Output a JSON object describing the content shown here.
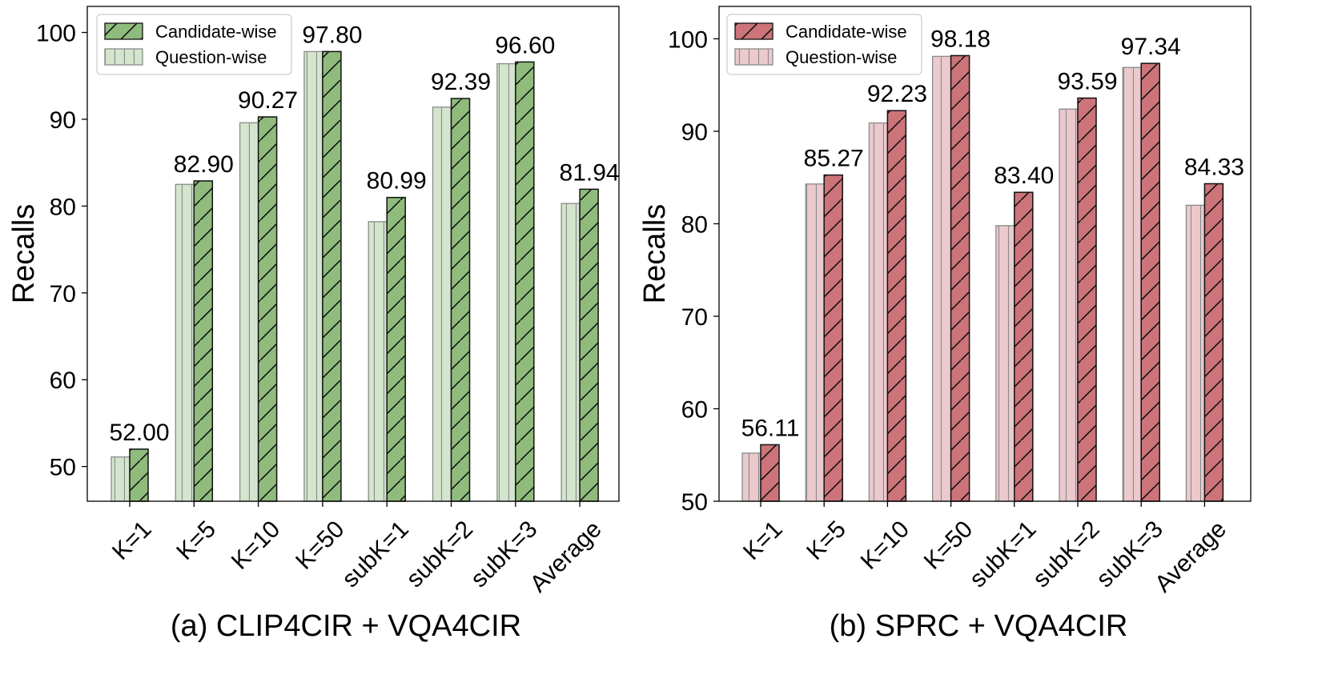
{
  "chart_data": [
    {
      "type": "bar",
      "caption": "(a) CLIP4CIR + VQA4CIR",
      "ylabel": "Recalls",
      "xlabel": "",
      "ylim": [
        46,
        103
      ],
      "yticks": [
        "50",
        "60",
        "70",
        "80",
        "90",
        "100"
      ],
      "categories": [
        "K=1",
        "K=5",
        "K=10",
        "K=50",
        "subK=1",
        "subK=2",
        "subK=3",
        "Average"
      ],
      "legend_position": "top-left",
      "series": [
        {
          "name": "Question-wise",
          "values": [
            51.1,
            82.5,
            89.6,
            97.8,
            78.2,
            91.4,
            96.4,
            80.3
          ],
          "color": "#d3e5cd",
          "hatch": "vertical"
        },
        {
          "name": "Candidate-wise",
          "values": [
            52.0,
            82.9,
            90.27,
            97.8,
            80.99,
            92.39,
            96.6,
            81.94
          ],
          "color": "#8fbb7c",
          "hatch": "diagonal"
        }
      ],
      "data_labels": [
        "52.00",
        "82.90",
        "90.27",
        "97.80",
        "80.99",
        "92.39",
        "96.60",
        "81.94"
      ]
    },
    {
      "type": "bar",
      "caption": "(b) SPRC + VQA4CIR",
      "ylabel": "Recalls",
      "xlabel": "",
      "ylim": [
        50,
        103.5
      ],
      "yticks": [
        "50",
        "60",
        "70",
        "80",
        "90",
        "100"
      ],
      "categories": [
        "K=1",
        "K=5",
        "K=10",
        "K=50",
        "subK=1",
        "subK=2",
        "subK=3",
        "Average"
      ],
      "legend_position": "top-left",
      "series": [
        {
          "name": "Question-wise",
          "values": [
            55.2,
            84.3,
            90.9,
            98.1,
            79.8,
            92.4,
            96.9,
            82.0
          ],
          "color": "#ebc9cd",
          "hatch": "vertical"
        },
        {
          "name": "Candidate-wise",
          "values": [
            56.11,
            85.27,
            92.23,
            98.18,
            83.4,
            93.59,
            97.34,
            84.33
          ],
          "color": "#cc7479",
          "hatch": "diagonal"
        }
      ],
      "data_labels": [
        "56.11",
        "85.27",
        "92.23",
        "98.18",
        "83.40",
        "93.59",
        "97.34",
        "84.33"
      ]
    }
  ]
}
